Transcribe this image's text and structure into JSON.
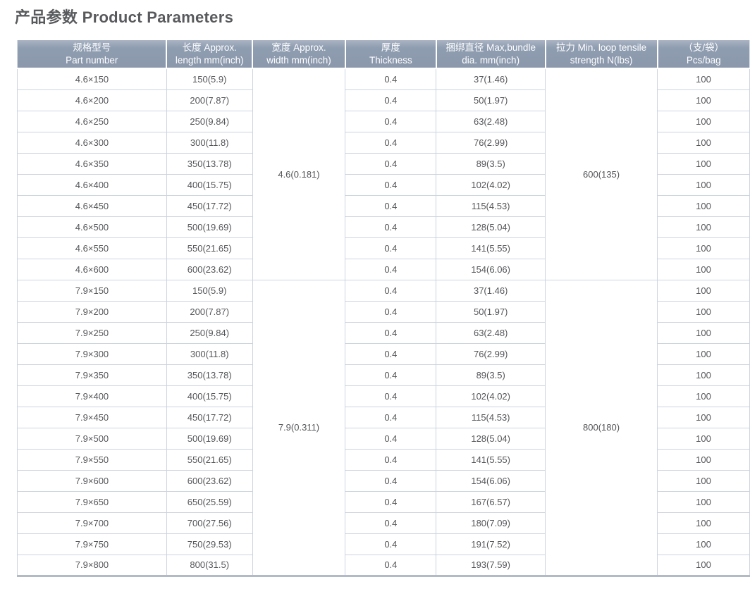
{
  "title": "产品参数 Product Parameters",
  "colors": {
    "header_bg": "#8f9db1",
    "header_text": "#ffffff",
    "body_text": "#55565a",
    "row_border": "#ccd4df",
    "section_divider": "#9da8b6",
    "bottom_bar": "#b2bac6"
  },
  "table": {
    "headers": [
      {
        "key": "part-number",
        "zh": "规格型号",
        "en": "Part number"
      },
      {
        "key": "length",
        "zh": "长度 Approx.",
        "en": "length mm(inch)"
      },
      {
        "key": "width",
        "zh": "宽度 Approx.",
        "en": "width mm(inch)"
      },
      {
        "key": "thickness",
        "zh": "厚度",
        "en": "Thickness"
      },
      {
        "key": "bundle-dia",
        "zh": "捆绑直径 Max,bundle",
        "en": "dia. mm(inch)"
      },
      {
        "key": "tensile-strength",
        "zh": "拉力 Min. loop tensile",
        "en": "strength N(lbs)"
      },
      {
        "key": "pcs-bag",
        "zh": "（支/袋）",
        "en": "Pcs/bag"
      }
    ],
    "sections": [
      {
        "width": "4.6(0.181)",
        "tensile": "600(135)",
        "rows": [
          {
            "part": "4.6×150",
            "length": "150(5.9)",
            "thickness": "0.4",
            "bundle": "37(1.46)",
            "pcs": "100"
          },
          {
            "part": "4.6×200",
            "length": "200(7.87)",
            "thickness": "0.4",
            "bundle": "50(1.97)",
            "pcs": "100"
          },
          {
            "part": "4.6×250",
            "length": "250(9.84)",
            "thickness": "0.4",
            "bundle": "63(2.48)",
            "pcs": "100"
          },
          {
            "part": "4.6×300",
            "length": "300(11.8)",
            "thickness": "0.4",
            "bundle": "76(2.99)",
            "pcs": "100"
          },
          {
            "part": "4.6×350",
            "length": "350(13.78)",
            "thickness": "0.4",
            "bundle": "89(3.5)",
            "pcs": "100"
          },
          {
            "part": "4.6×400",
            "length": "400(15.75)",
            "thickness": "0.4",
            "bundle": "102(4.02)",
            "pcs": "100"
          },
          {
            "part": "4.6×450",
            "length": "450(17.72)",
            "thickness": "0.4",
            "bundle": "115(4.53)",
            "pcs": "100"
          },
          {
            "part": "4.6×500",
            "length": "500(19.69)",
            "thickness": "0.4",
            "bundle": "128(5.04)",
            "pcs": "100"
          },
          {
            "part": "4.6×550",
            "length": "550(21.65)",
            "thickness": "0.4",
            "bundle": "141(5.55)",
            "pcs": "100"
          },
          {
            "part": "4.6×600",
            "length": "600(23.62)",
            "thickness": "0.4",
            "bundle": "154(6.06)",
            "pcs": "100"
          }
        ]
      },
      {
        "width": "7.9(0.311)",
        "tensile": "800(180)",
        "rows": [
          {
            "part": "7.9×150",
            "length": "150(5.9)",
            "thickness": "0.4",
            "bundle": "37(1.46)",
            "pcs": "100"
          },
          {
            "part": "7.9×200",
            "length": "200(7.87)",
            "thickness": "0.4",
            "bundle": "50(1.97)",
            "pcs": "100"
          },
          {
            "part": "7.9×250",
            "length": "250(9.84)",
            "thickness": "0.4",
            "bundle": "63(2.48)",
            "pcs": "100"
          },
          {
            "part": "7.9×300",
            "length": "300(11.8)",
            "thickness": "0.4",
            "bundle": "76(2.99)",
            "pcs": "100"
          },
          {
            "part": "7.9×350",
            "length": "350(13.78)",
            "thickness": "0.4",
            "bundle": "89(3.5)",
            "pcs": "100"
          },
          {
            "part": "7.9×400",
            "length": "400(15.75)",
            "thickness": "0.4",
            "bundle": "102(4.02)",
            "pcs": "100"
          },
          {
            "part": "7.9×450",
            "length": "450(17.72)",
            "thickness": "0.4",
            "bundle": "115(4.53)",
            "pcs": "100"
          },
          {
            "part": "7.9×500",
            "length": "500(19.69)",
            "thickness": "0.4",
            "bundle": "128(5.04)",
            "pcs": "100"
          },
          {
            "part": "7.9×550",
            "length": "550(21.65)",
            "thickness": "0.4",
            "bundle": "141(5.55)",
            "pcs": "100"
          },
          {
            "part": "7.9×600",
            "length": "600(23.62)",
            "thickness": "0.4",
            "bundle": "154(6.06)",
            "pcs": "100"
          },
          {
            "part": "7.9×650",
            "length": "650(25.59)",
            "thickness": "0.4",
            "bundle": "167(6.57)",
            "pcs": "100"
          },
          {
            "part": "7.9×700",
            "length": "700(27.56)",
            "thickness": "0.4",
            "bundle": "180(7.09)",
            "pcs": "100"
          },
          {
            "part": "7.9×750",
            "length": "750(29.53)",
            "thickness": "0.4",
            "bundle": "191(7.52)",
            "pcs": "100"
          },
          {
            "part": "7.9×800",
            "length": "800(31.5)",
            "thickness": "0.4",
            "bundle": "193(7.59)",
            "pcs": "100"
          }
        ]
      }
    ]
  }
}
